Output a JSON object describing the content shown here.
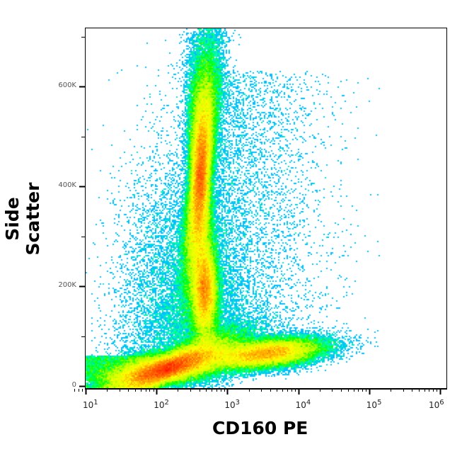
{
  "chart_data": {
    "type": "heatmap",
    "subtype": "flow cytometry density dot plot",
    "xlabel": "CD160 PE",
    "ylabel": "Side Scatter",
    "x_scale": "log",
    "xlim": [
      7,
      1100000
    ],
    "ylim": [
      -5000,
      720000
    ],
    "x_ticks": [
      {
        "value": 10,
        "base": "10",
        "exp": "1"
      },
      {
        "value": 100,
        "base": "10",
        "exp": "2"
      },
      {
        "value": 1000,
        "base": "10",
        "exp": "3"
      },
      {
        "value": 10000,
        "base": "10",
        "exp": "4"
      },
      {
        "value": 100000,
        "base": "10",
        "exp": "5"
      },
      {
        "value": 1000000,
        "base": "10",
        "exp": "6"
      }
    ],
    "y_ticks": [
      {
        "value": 0,
        "label": "0"
      },
      {
        "value": 200000,
        "label": "200K"
      },
      {
        "value": 400000,
        "label": "400K"
      },
      {
        "value": 600000,
        "label": "600K"
      }
    ],
    "colormap": [
      "#0000ff",
      "#00bfff",
      "#00ffb0",
      "#00ff00",
      "#c0ff00",
      "#ffff00",
      "#ff8000",
      "#ff0000"
    ],
    "populations": [
      {
        "name": "CD160-negative low SSC (lymphocytes)",
        "center_log_x": 2.15,
        "center_y": 35000,
        "sd_log_x": 0.35,
        "sd_y": 20000,
        "tilt": 22000,
        "weight": 0.34,
        "peak_color": "red"
      },
      {
        "name": "CD160-positive low SSC",
        "center_log_x": 3.55,
        "center_y": 65000,
        "sd_log_x": 0.4,
        "sd_y": 14000,
        "tilt": 6000,
        "weight": 0.14,
        "peak_color": "cyan"
      },
      {
        "name": "granulocytes high SSC",
        "center_log_x": 2.62,
        "center_y": 420000,
        "sd_log_x": 0.07,
        "sd_y": 120000,
        "tilt": 0.18,
        "weight": 0.32,
        "peak_color": "yellow-green"
      },
      {
        "name": "monocytes mid SSC",
        "center_log_x": 2.68,
        "center_y": 190000,
        "sd_log_x": 0.09,
        "sd_y": 50000,
        "tilt": 0.0,
        "weight": 0.12,
        "peak_color": "cyan"
      },
      {
        "name": "background scatter",
        "weight": 0.08
      }
    ]
  }
}
